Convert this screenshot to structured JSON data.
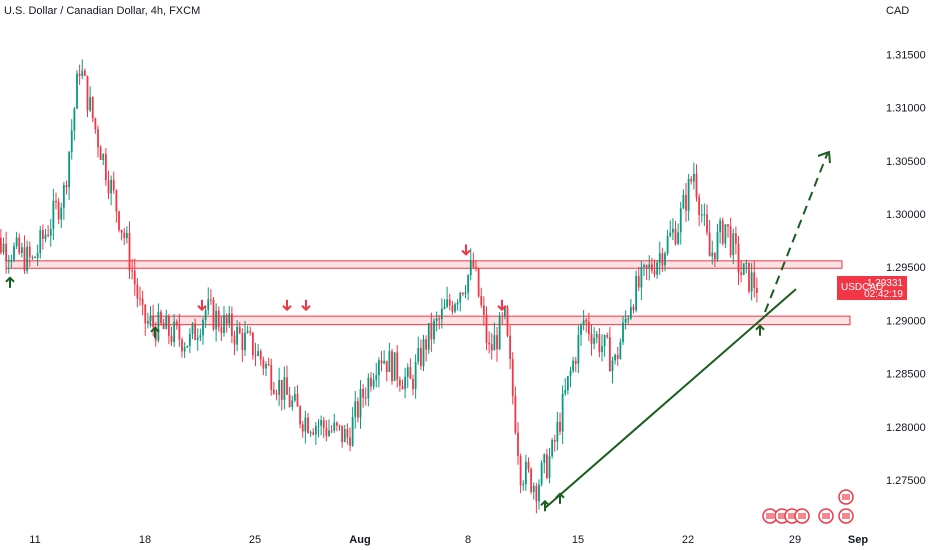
{
  "title": "U.S. Dollar / Canadian Dollar, 4h, FXCM",
  "currency": "CAD",
  "symbol": "USDCAD",
  "last_price": "1.29331",
  "countdown": "02:42:19",
  "colors": {
    "up": "#089981",
    "down": "#f23645",
    "zone": "#f23645",
    "trend": "#1b5e20",
    "arrow_up": "#1b5e20",
    "arrow_down": "#f23645"
  },
  "chart_data": {
    "type": "candlestick",
    "x_ticks": [
      {
        "label": "11",
        "bold": false
      },
      {
        "label": "18",
        "bold": false
      },
      {
        "label": "25",
        "bold": false
      },
      {
        "label": "Aug",
        "bold": true
      },
      {
        "label": "8",
        "bold": false
      },
      {
        "label": "15",
        "bold": false
      },
      {
        "label": "22",
        "bold": false
      },
      {
        "label": "29",
        "bold": false
      },
      {
        "label": "Sep",
        "bold": true
      }
    ],
    "y_ticks": [
      "1.31500",
      "1.31000",
      "1.30500",
      "1.30000",
      "1.29500",
      "1.29000",
      "1.28500",
      "1.28000",
      "1.27500"
    ],
    "ylim": [
      1.2695,
      1.3195
    ],
    "resistance_zone": {
      "low": 1.2949,
      "high": 1.2956
    },
    "support_zone": {
      "low": 1.2896,
      "high": 1.2904
    },
    "trendline": {
      "from": {
        "date": "Aug 11",
        "price": 1.2735
      },
      "to": {
        "date": "Aug 28",
        "price": 1.292
      }
    },
    "projection": {
      "from": {
        "date": "Aug 26",
        "price": 1.2905
      },
      "to": {
        "date": "Aug 31",
        "price": 1.3055
      }
    },
    "path": [
      {
        "date": "Jul 8",
        "price": 1.298
      },
      {
        "date": "Jul 11",
        "price": 1.2955
      },
      {
        "date": "Jul 13",
        "price": 1.302
      },
      {
        "date": "Jul 14",
        "price": 1.314
      },
      {
        "date": "Jul 15",
        "price": 1.308
      },
      {
        "date": "Jul 17",
        "price": 1.297
      },
      {
        "date": "Jul 18",
        "price": 1.29
      },
      {
        "date": "Jul 21",
        "price": 1.288
      },
      {
        "date": "Jul 22",
        "price": 1.291
      },
      {
        "date": "Jul 25",
        "price": 1.2875
      },
      {
        "date": "Jul 28",
        "price": 1.281
      },
      {
        "date": "Jul 31",
        "price": 1.279
      },
      {
        "date": "Aug 2",
        "price": 1.287
      },
      {
        "date": "Aug 4",
        "price": 1.284
      },
      {
        "date": "Aug 5",
        "price": 1.288
      },
      {
        "date": "Aug 8",
        "price": 1.295
      },
      {
        "date": "Aug 9",
        "price": 1.287
      },
      {
        "date": "Aug 10",
        "price": 1.29
      },
      {
        "date": "Aug 11",
        "price": 1.276
      },
      {
        "date": "Aug 12",
        "price": 1.2745
      },
      {
        "date": "Aug 13",
        "price": 1.2775
      },
      {
        "date": "Aug 14",
        "price": 1.284
      },
      {
        "date": "Aug 15",
        "price": 1.29
      },
      {
        "date": "Aug 17",
        "price": 1.286
      },
      {
        "date": "Aug 18",
        "price": 1.292
      },
      {
        "date": "Aug 21",
        "price": 1.299
      },
      {
        "date": "Aug 22",
        "price": 1.304
      },
      {
        "date": "Aug 23",
        "price": 1.296
      },
      {
        "date": "Aug 24",
        "price": 1.299
      },
      {
        "date": "Aug 25",
        "price": 1.2945
      },
      {
        "date": "Aug 26",
        "price": 1.2933
      }
    ],
    "arrows": [
      {
        "dir": "up",
        "date": "Jul 8",
        "price": 1.294
      },
      {
        "dir": "up",
        "date": "Jul 18",
        "price": 1.2893
      },
      {
        "dir": "down",
        "date": "Jul 23",
        "price": 1.291
      },
      {
        "dir": "down",
        "date": "Jul 27",
        "price": 1.291
      },
      {
        "dir": "down",
        "date": "Jul 28",
        "price": 1.291
      },
      {
        "dir": "down",
        "date": "Aug 8",
        "price": 1.2962
      },
      {
        "dir": "down",
        "date": "Aug 10",
        "price": 1.291
      },
      {
        "dir": "up",
        "date": "Aug 12",
        "price": 1.273
      },
      {
        "dir": "up",
        "date": "Aug 13",
        "price": 1.2737
      },
      {
        "dir": "up",
        "date": "Aug 26",
        "price": 1.2895
      }
    ]
  }
}
